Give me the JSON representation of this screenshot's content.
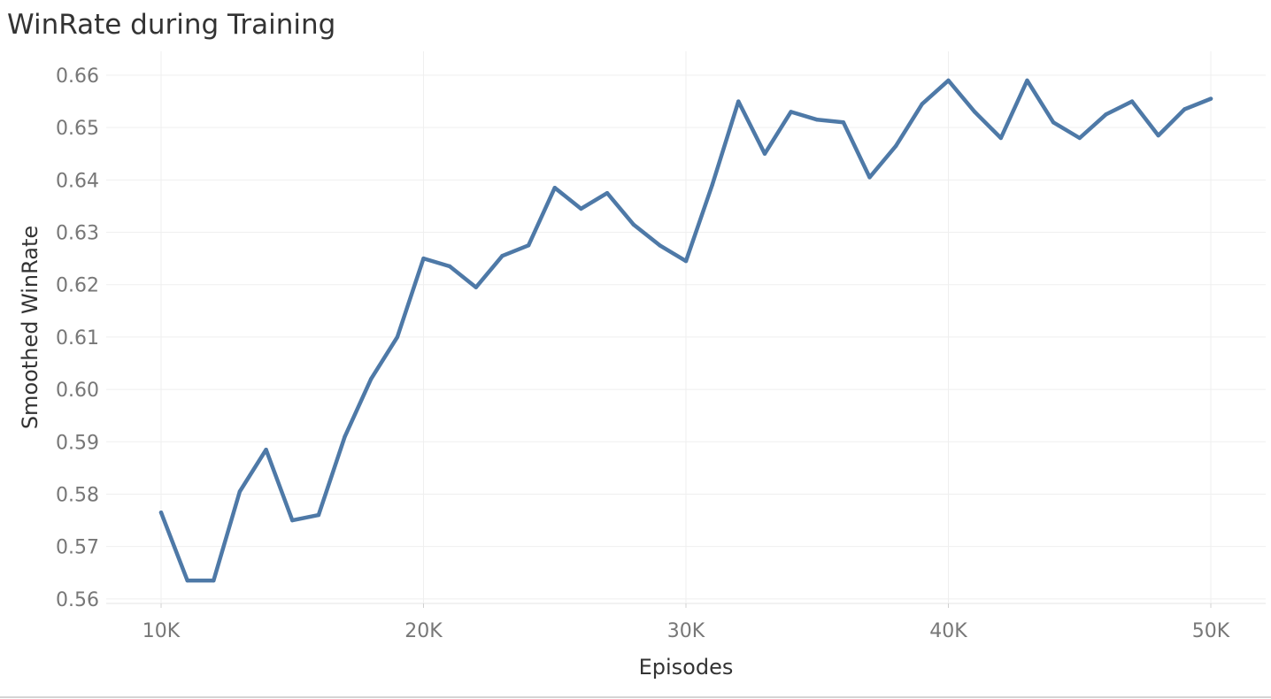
{
  "chart_data": {
    "type": "line",
    "title": "WinRate during Training",
    "xlabel": "Episodes",
    "ylabel": "Smoothed WinRate",
    "xlim": [
      8000,
      52000
    ],
    "ylim": [
      0.557,
      0.662
    ],
    "x_ticks": [
      {
        "value": 10000,
        "label": "10K"
      },
      {
        "value": 20000,
        "label": "20K"
      },
      {
        "value": 30000,
        "label": "30K"
      },
      {
        "value": 40000,
        "label": "40K"
      },
      {
        "value": 50000,
        "label": "50K"
      }
    ],
    "y_ticks": [
      {
        "value": 0.56,
        "label": "0.56"
      },
      {
        "value": 0.57,
        "label": "0.57"
      },
      {
        "value": 0.58,
        "label": "0.58"
      },
      {
        "value": 0.59,
        "label": "0.59"
      },
      {
        "value": 0.6,
        "label": "0.60"
      },
      {
        "value": 0.61,
        "label": "0.61"
      },
      {
        "value": 0.62,
        "label": "0.62"
      },
      {
        "value": 0.63,
        "label": "0.63"
      },
      {
        "value": 0.64,
        "label": "0.64"
      },
      {
        "value": 0.65,
        "label": "0.65"
      },
      {
        "value": 0.66,
        "label": "0.66"
      }
    ],
    "grid": true,
    "series": [
      {
        "color": "#4e79a7",
        "points": [
          [
            10000,
            0.5765
          ],
          [
            11000,
            0.5635
          ],
          [
            12000,
            0.5635
          ],
          [
            13000,
            0.5805
          ],
          [
            14000,
            0.5885
          ],
          [
            15000,
            0.575
          ],
          [
            16000,
            0.576
          ],
          [
            17000,
            0.591
          ],
          [
            18000,
            0.602
          ],
          [
            19000,
            0.61
          ],
          [
            20000,
            0.625
          ],
          [
            21000,
            0.6235
          ],
          [
            22000,
            0.6195
          ],
          [
            23000,
            0.6255
          ],
          [
            24000,
            0.6275
          ],
          [
            25000,
            0.6385
          ],
          [
            26000,
            0.6345
          ],
          [
            27000,
            0.6375
          ],
          [
            28000,
            0.6315
          ],
          [
            29000,
            0.6275
          ],
          [
            30000,
            0.6245
          ],
          [
            31000,
            0.639
          ],
          [
            32000,
            0.655
          ],
          [
            33000,
            0.645
          ],
          [
            34000,
            0.653
          ],
          [
            35000,
            0.6515
          ],
          [
            36000,
            0.651
          ],
          [
            37000,
            0.6405
          ],
          [
            38000,
            0.6465
          ],
          [
            39000,
            0.6545
          ],
          [
            40000,
            0.659
          ],
          [
            41000,
            0.653
          ],
          [
            42000,
            0.648
          ],
          [
            43000,
            0.659
          ],
          [
            44000,
            0.651
          ],
          [
            45000,
            0.648
          ],
          [
            46000,
            0.6525
          ],
          [
            47000,
            0.655
          ],
          [
            48000,
            0.6485
          ],
          [
            49000,
            0.6535
          ],
          [
            50000,
            0.6555
          ]
        ]
      }
    ]
  }
}
